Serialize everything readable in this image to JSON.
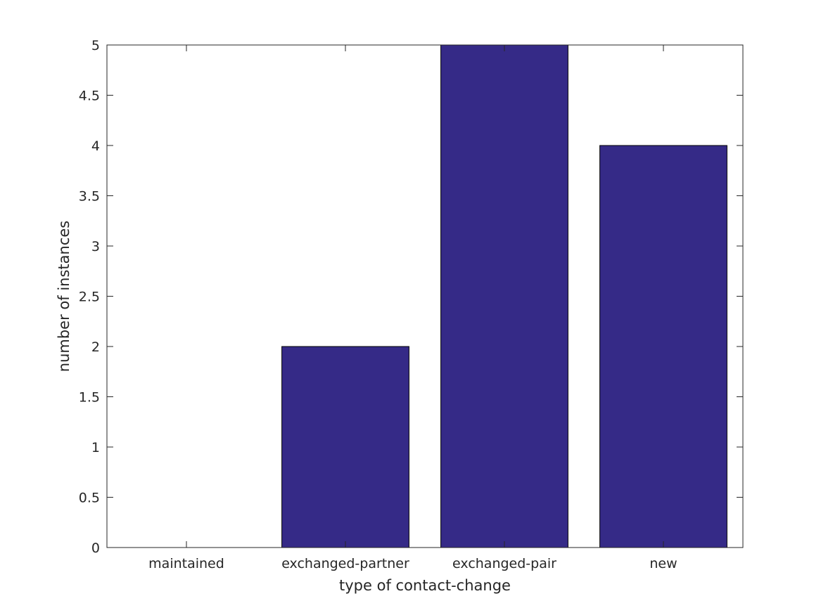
{
  "chart_data": {
    "type": "bar",
    "categories": [
      "maintained",
      "exchanged-partner",
      "exchanged-pair",
      "new"
    ],
    "values": [
      0,
      2,
      5,
      4
    ],
    "xlabel": "type of contact-change",
    "ylabel": "number of instances",
    "ylim": [
      0,
      5
    ],
    "yticks": [
      0,
      0.5,
      1,
      1.5,
      2,
      2.5,
      3,
      3.5,
      4,
      4.5,
      5
    ],
    "ytick_labels": [
      "0",
      "0.5",
      "1",
      "1.5",
      "2",
      "2.5",
      "3",
      "3.5",
      "4",
      "4.5",
      "5"
    ],
    "bar_color": "#352a87",
    "grid": false
  }
}
